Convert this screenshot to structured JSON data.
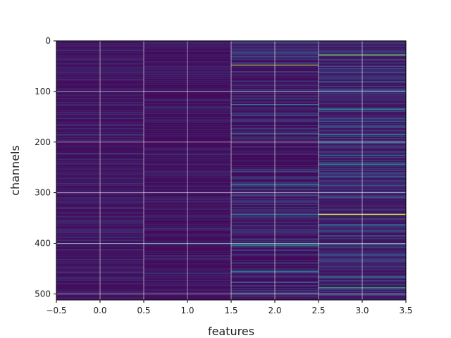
{
  "chart_data": {
    "type": "heatmap",
    "xlabel": "features",
    "ylabel": "channels",
    "xlim": [
      -0.5,
      3.5
    ],
    "ylim": [
      512,
      0
    ],
    "x_ticks": [
      -0.5,
      0.0,
      0.5,
      1.0,
      1.5,
      2.0,
      2.5,
      3.0,
      3.5
    ],
    "x_tick_labels": [
      "−0.5",
      "0.0",
      "0.5",
      "1.0",
      "1.5",
      "2.0",
      "2.5",
      "3.0",
      "3.5"
    ],
    "y_ticks": [
      0,
      100,
      200,
      300,
      400,
      500
    ],
    "y_tick_labels": [
      "0",
      "100",
      "200",
      "300",
      "400",
      "500"
    ],
    "columns": [
      0,
      1,
      2,
      3
    ],
    "channels": 512,
    "grid": true,
    "colormap": "viridis",
    "background_value_by_column": [
      0.04,
      0.03,
      0.03,
      0.06
    ],
    "bright_rows": [
      {
        "column": 0,
        "channel": 185,
        "value": 0.25
      },
      {
        "column": 0,
        "channel": 222,
        "value": 0.22
      },
      {
        "column": 0,
        "channel": 400,
        "value": 0.45
      },
      {
        "column": 1,
        "channel": 400,
        "value": 0.45
      },
      {
        "column": 2,
        "channel": 30,
        "value": 0.3
      },
      {
        "column": 2,
        "channel": 47,
        "value": 0.85
      },
      {
        "column": 2,
        "channel": 125,
        "value": 0.4
      },
      {
        "column": 2,
        "channel": 183,
        "value": 0.42
      },
      {
        "column": 2,
        "channel": 283,
        "value": 0.5
      },
      {
        "column": 2,
        "channel": 292,
        "value": 0.35
      },
      {
        "column": 2,
        "channel": 342,
        "value": 0.38
      },
      {
        "column": 2,
        "channel": 400,
        "value": 0.55
      },
      {
        "column": 2,
        "channel": 403,
        "value": 0.5
      },
      {
        "column": 2,
        "channel": 438,
        "value": 0.3
      },
      {
        "column": 2,
        "channel": 455,
        "value": 0.4
      },
      {
        "column": 2,
        "channel": 477,
        "value": 0.3
      },
      {
        "column": 3,
        "channel": 27,
        "value": 0.8
      },
      {
        "column": 3,
        "channel": 80,
        "value": 0.35
      },
      {
        "column": 3,
        "channel": 135,
        "value": 0.4
      },
      {
        "column": 3,
        "channel": 185,
        "value": 0.5
      },
      {
        "column": 3,
        "channel": 225,
        "value": 0.35
      },
      {
        "column": 3,
        "channel": 243,
        "value": 0.5
      },
      {
        "column": 3,
        "channel": 255,
        "value": 0.3
      },
      {
        "column": 3,
        "channel": 342,
        "value": 0.95
      },
      {
        "column": 3,
        "channel": 363,
        "value": 0.35
      },
      {
        "column": 3,
        "channel": 400,
        "value": 0.55
      },
      {
        "column": 3,
        "channel": 465,
        "value": 0.38
      },
      {
        "column": 3,
        "channel": 487,
        "value": 0.6
      }
    ]
  }
}
